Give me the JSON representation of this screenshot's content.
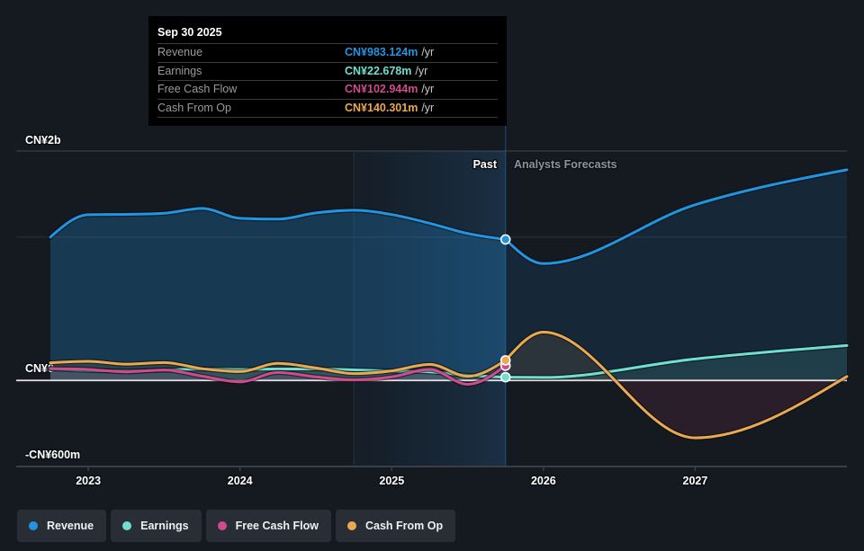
{
  "tooltip": {
    "date": "Sep 30 2025",
    "rows": [
      {
        "label": "Revenue",
        "value": "CN¥983.124m",
        "unit": "/yr",
        "color": "#2394df"
      },
      {
        "label": "Earnings",
        "value": "CN¥22.678m",
        "unit": "/yr",
        "color": "#6fe0d0"
      },
      {
        "label": "Free Cash Flow",
        "value": "CN¥102.944m",
        "unit": "/yr",
        "color": "#d04a8c"
      },
      {
        "label": "Cash From Op",
        "value": "CN¥140.301m",
        "unit": "/yr",
        "color": "#eaa94f"
      }
    ]
  },
  "legend": [
    {
      "label": "Revenue",
      "color": "#2394df"
    },
    {
      "label": "Earnings",
      "color": "#6fe0d0"
    },
    {
      "label": "Free Cash Flow",
      "color": "#d04a8c"
    },
    {
      "label": "Cash From Op",
      "color": "#eaa94f"
    }
  ],
  "chart_data": {
    "type": "line",
    "title": "",
    "xlabel": "",
    "ylabel": "",
    "units": "CN¥ millions",
    "xlim": [
      2022.75,
      2028.0
    ],
    "ylim": [
      -600,
      1600
    ],
    "grid": true,
    "gridlines_y": [
      1000,
      1600
    ],
    "y_axis_labels": [
      {
        "label": "CN¥2b",
        "position": "top"
      },
      {
        "label": "CN¥0",
        "value": 0
      },
      {
        "label": "-CN¥600m",
        "position": "bottom"
      }
    ],
    "x_ticks": [
      {
        "value": 2023,
        "label": "2023"
      },
      {
        "value": 2024,
        "label": "2024"
      },
      {
        "value": 2025,
        "label": "2025"
      },
      {
        "value": 2026,
        "label": "2026"
      },
      {
        "value": 2027,
        "label": "2027"
      }
    ],
    "divider": {
      "value": 2025.75,
      "past_label": "Past",
      "forecast_label": "Analysts Forecasts"
    },
    "highlight_range": [
      2024.75,
      2025.75
    ],
    "legend_position": "bottom-left",
    "series": [
      {
        "name": "Revenue",
        "color": "#2394df",
        "marker_value": 983.124,
        "past": [
          [
            2022.75,
            1000
          ],
          [
            2023.0,
            1156
          ],
          [
            2023.25,
            1158
          ],
          [
            2023.5,
            1166
          ],
          [
            2023.75,
            1200
          ],
          [
            2024.0,
            1131
          ],
          [
            2024.25,
            1125
          ],
          [
            2024.5,
            1168
          ],
          [
            2024.75,
            1187
          ],
          [
            2025.0,
            1157
          ],
          [
            2025.25,
            1096
          ],
          [
            2025.5,
            1025
          ],
          [
            2025.75,
            983.124
          ]
        ],
        "forecast": [
          [
            2025.75,
            983.124
          ],
          [
            2026.0,
            815
          ],
          [
            2027.0,
            1225
          ],
          [
            2028.0,
            1469
          ]
        ]
      },
      {
        "name": "Earnings",
        "color": "#6fe0d0",
        "marker_value": 22.678,
        "past": [
          [
            2022.75,
            82
          ],
          [
            2023.0,
            70
          ],
          [
            2023.25,
            66
          ],
          [
            2023.5,
            72
          ],
          [
            2023.75,
            80
          ],
          [
            2024.0,
            77
          ],
          [
            2024.25,
            80
          ],
          [
            2024.5,
            80
          ],
          [
            2024.75,
            74
          ],
          [
            2025.0,
            66
          ],
          [
            2025.25,
            60
          ],
          [
            2025.5,
            36
          ],
          [
            2025.75,
            22.678
          ]
        ],
        "forecast": [
          [
            2025.75,
            22.678
          ],
          [
            2026.0,
            21
          ],
          [
            2027.0,
            150
          ],
          [
            2028.0,
            244
          ]
        ]
      },
      {
        "name": "Free Cash Flow",
        "color": "#d04a8c",
        "marker_value": 102.944,
        "past": [
          [
            2022.75,
            83
          ],
          [
            2023.0,
            77
          ],
          [
            2023.25,
            60
          ],
          [
            2023.5,
            73
          ],
          [
            2023.75,
            30
          ],
          [
            2024.0,
            -10
          ],
          [
            2024.25,
            56
          ],
          [
            2024.5,
            25
          ],
          [
            2024.75,
            4
          ],
          [
            2025.0,
            25
          ],
          [
            2025.25,
            77
          ],
          [
            2025.5,
            -27
          ],
          [
            2025.75,
            102.944
          ]
        ],
        "forecast": []
      },
      {
        "name": "Cash From Op",
        "color": "#eaa94f",
        "marker_value": 140.301,
        "past": [
          [
            2022.75,
            123
          ],
          [
            2023.0,
            133
          ],
          [
            2023.25,
            114
          ],
          [
            2023.5,
            125
          ],
          [
            2023.75,
            82
          ],
          [
            2024.0,
            62
          ],
          [
            2024.25,
            119
          ],
          [
            2024.5,
            87
          ],
          [
            2024.75,
            48
          ],
          [
            2025.0,
            67
          ],
          [
            2025.25,
            112
          ],
          [
            2025.5,
            29
          ],
          [
            2025.75,
            140.301
          ]
        ],
        "forecast": [
          [
            2025.75,
            140.301
          ],
          [
            2026.0,
            337
          ],
          [
            2027.0,
            -400
          ],
          [
            2028.0,
            28
          ]
        ]
      }
    ]
  }
}
